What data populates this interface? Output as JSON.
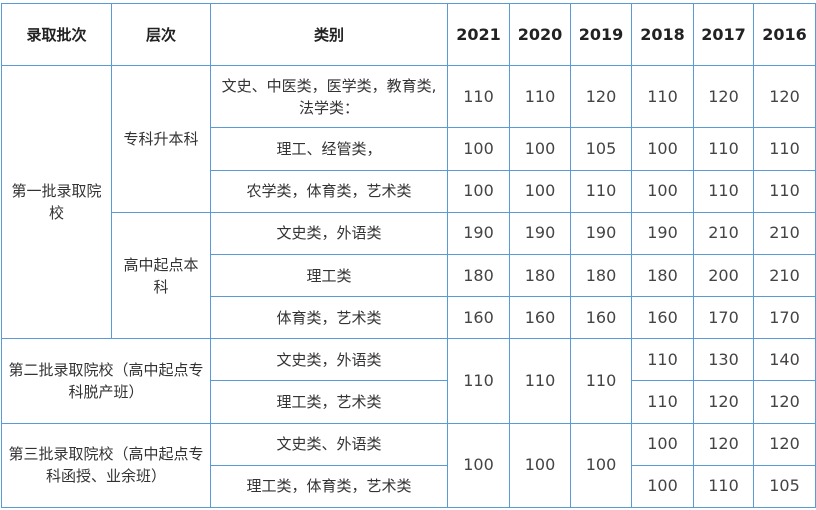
{
  "headers": {
    "batch": "录取批次",
    "level": "层次",
    "category": "类别",
    "years": [
      "2021",
      "2020",
      "2019",
      "2018",
      "2017",
      "2016"
    ]
  },
  "groups": [
    {
      "batch": "第一批录取院校",
      "levels": [
        {
          "level": "专科升本科",
          "rows": [
            {
              "category": "文史、中医类，医学类，教育类,法学类：",
              "scores": [
                "110",
                "110",
                "120",
                "110",
                "120",
                "120"
              ]
            },
            {
              "category": "理工、经管类，",
              "scores": [
                "100",
                "100",
                "105",
                "100",
                "110",
                "110"
              ]
            },
            {
              "category": "农学类，体育类，艺术类",
              "scores": [
                "100",
                "100",
                "110",
                "100",
                "110",
                "110"
              ]
            }
          ]
        },
        {
          "level": "高中起点本科",
          "rows": [
            {
              "category": "文史类，外语类",
              "scores": [
                "190",
                "190",
                "190",
                "190",
                "210",
                "210"
              ]
            },
            {
              "category": "理工类",
              "scores": [
                "180",
                "180",
                "180",
                "180",
                "200",
                "210"
              ]
            },
            {
              "category": "体育类，艺术类",
              "scores": [
                "160",
                "160",
                "160",
                "160",
                "170",
                "170"
              ]
            }
          ]
        }
      ]
    },
    {
      "batch": "第二批录取院校（高中起点专科脱产班）",
      "shared": [
        "110",
        "110",
        "110"
      ],
      "rows": [
        {
          "category": "文史类，外语类",
          "scores": [
            "110",
            "130",
            "140"
          ]
        },
        {
          "category": "理工类，艺术类",
          "scores": [
            "110",
            "120",
            "120"
          ]
        }
      ]
    },
    {
      "batch": "第三批录取院校（高中起点专科函授、业余班）",
      "shared": [
        "100",
        "100",
        "100"
      ],
      "rows": [
        {
          "category": "文史类、外语类",
          "scores": [
            "100",
            "120",
            "120"
          ]
        },
        {
          "category": "理工类，体育类，艺术类",
          "scores": [
            "100",
            "110",
            "105"
          ]
        }
      ]
    }
  ]
}
